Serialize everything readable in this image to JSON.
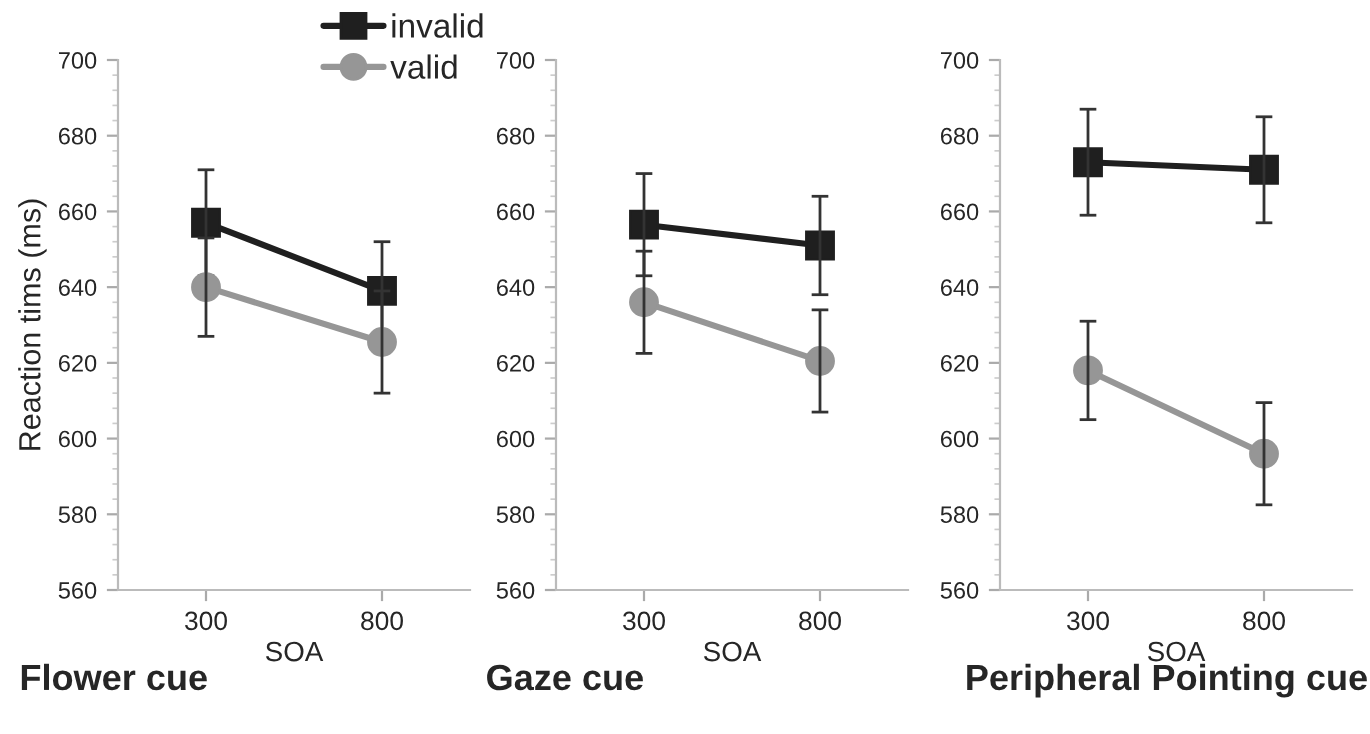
{
  "chart_data": [
    {
      "type": "line",
      "title": "Flower cue",
      "xlabel": "SOA",
      "ylabel": "Reaction tims (ms)",
      "categories": [
        "300",
        "800"
      ],
      "ylim": [
        560,
        700
      ],
      "yticks": [
        560,
        580,
        600,
        620,
        640,
        660,
        680,
        700
      ],
      "legend": "top right",
      "grid": false,
      "series": [
        {
          "name": "invalid",
          "color": "#1f1f1f",
          "marker": "square",
          "values": [
            657,
            639
          ],
          "errors": [
            14,
            13
          ]
        },
        {
          "name": "valid",
          "color": "#969696",
          "marker": "circle",
          "values": [
            640,
            625.5
          ],
          "errors": [
            13,
            13.5
          ]
        }
      ]
    },
    {
      "type": "line",
      "title": "Gaze cue",
      "xlabel": "SOA",
      "categories": [
        "300",
        "800"
      ],
      "ylim": [
        560,
        700
      ],
      "yticks": [
        560,
        580,
        600,
        620,
        640,
        660,
        680,
        700
      ],
      "grid": false,
      "series": [
        {
          "color": "#1f1f1f",
          "marker": "square",
          "values": [
            656.5,
            651
          ],
          "errors": [
            13.5,
            13
          ]
        },
        {
          "color": "#969696",
          "marker": "circle",
          "values": [
            636,
            620.5
          ],
          "errors": [
            13.5,
            13.5
          ]
        }
      ]
    },
    {
      "type": "line",
      "title": "Peripheral Pointing cue",
      "xlabel": "SOA",
      "categories": [
        "300",
        "800"
      ],
      "ylim": [
        560,
        700
      ],
      "yticks": [
        560,
        580,
        600,
        620,
        640,
        660,
        680,
        700
      ],
      "grid": false,
      "series": [
        {
          "color": "#1f1f1f",
          "marker": "square",
          "values": [
            673,
            671
          ],
          "errors": [
            14,
            14
          ]
        },
        {
          "color": "#969696",
          "marker": "circle",
          "values": [
            618,
            596
          ],
          "errors": [
            13,
            13.5
          ]
        }
      ]
    }
  ]
}
